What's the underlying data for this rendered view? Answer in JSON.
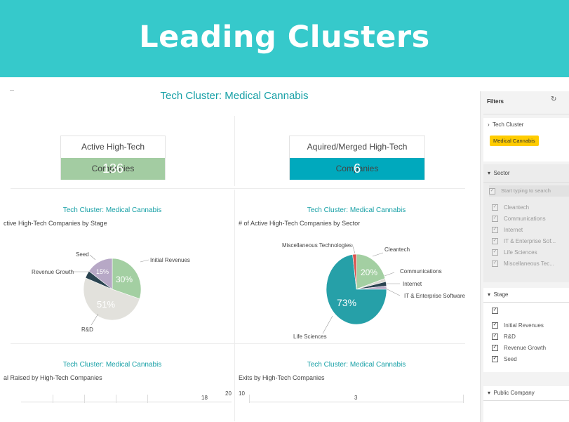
{
  "banner": {
    "title": "Leading Clusters"
  },
  "dashboard": {
    "main_title": "Tech Cluster: Medical Cannabis",
    "kpis": [
      {
        "label": "Active High-Tech Companies",
        "value": "136",
        "color": "#A3CCA2"
      },
      {
        "label": "Aquired/Merged High-Tech Companies",
        "value": "6",
        "color": "#00A9BD"
      }
    ],
    "panels": [
      {
        "cluster": "Tech Cluster: Medical Cannabis",
        "subtitle": "ctive High-Tech Companies by Stage"
      },
      {
        "cluster": "Tech Cluster: Medical Cannabis",
        "subtitle": "# of Active High-Tech Companies by Sector"
      },
      {
        "cluster": "Tech Cluster: Medical Cannabis",
        "subtitle": "al Raised by High-Tech Companies"
      },
      {
        "cluster": "Tech Cluster: Medical Cannabis",
        "subtitle": "Exits by High-Tech Companies"
      }
    ],
    "bottom_left_axis": [
      "18",
      "20",
      "10"
    ],
    "bottom_right_axis": [
      "3"
    ]
  },
  "chart_data": [
    {
      "type": "pie",
      "slices": [
        {
          "label": "Initial Revenues",
          "value": 30,
          "pct_label": "30%",
          "color": "#A3CFA2"
        },
        {
          "label": "R&D",
          "value": 51,
          "pct_label": "51%",
          "color": "#E2E1DC"
        },
        {
          "label": "Revenue Growth",
          "value": 4,
          "pct_label": "",
          "color": "#2A4350"
        },
        {
          "label": "Seed",
          "value": 15,
          "pct_label": "15%",
          "color": "#B7A8C6"
        }
      ]
    },
    {
      "type": "pie",
      "slices": [
        {
          "label": "Cleantech",
          "value": 20,
          "pct_label": "20%",
          "color": "#A3CFA2"
        },
        {
          "label": "Communications",
          "value": 1.5,
          "pct_label": "",
          "color": "#DCDAD5"
        },
        {
          "label": "Internet",
          "value": 2,
          "pct_label": "",
          "color": "#2A4350"
        },
        {
          "label": "IT & Enterprise Software",
          "value": 1.5,
          "pct_label": "",
          "color": "#B7A8C6"
        },
        {
          "label": "Life Sciences",
          "value": 73,
          "pct_label": "73%",
          "color": "#26A0A8"
        },
        {
          "label": "Miscellaneous Technologies",
          "value": 2,
          "pct_label": "",
          "color": "#D9534F"
        }
      ]
    }
  ],
  "filters": {
    "title": "Filters",
    "tech_cluster": {
      "header": "Tech Cluster",
      "selected": "Medical Cannabis"
    },
    "sector": {
      "header": "Sector",
      "search_placeholder": "Start typing to search",
      "items": [
        "Cleantech",
        "Communications",
        "Internet",
        "IT & Enterprise Sof...",
        "Life Sciences",
        "Miscellaneous Tec..."
      ]
    },
    "stage": {
      "header": "Stage",
      "items": [
        "",
        "Initial Revenues",
        "R&D",
        "Revenue Growth",
        "Seed"
      ]
    },
    "public_company": {
      "header": "Public Company"
    },
    "colors": {
      "selected_badge": "#FFCC00"
    }
  }
}
